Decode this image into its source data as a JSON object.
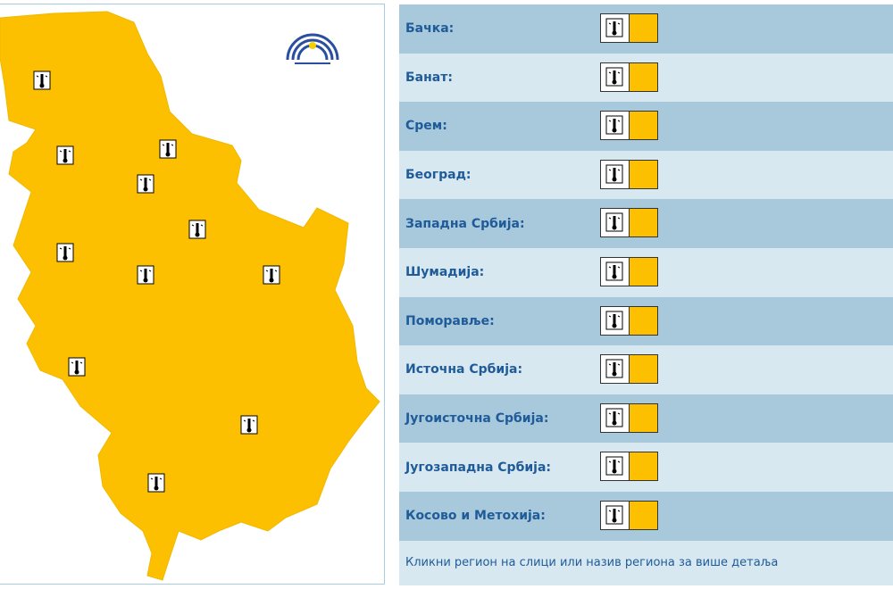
{
  "regions": [
    "Бачка:",
    "Банат:",
    "Срем:",
    "Београд:",
    "Западна Србија:",
    "Шумадија:",
    "Поморавље:",
    "Источна Србија:",
    "Југоисточна Србија:",
    "Југозападна Србија:",
    "Косово и Метохија:"
  ],
  "footer": "Кликни регион на слици или назив региона за више детаља"
}
